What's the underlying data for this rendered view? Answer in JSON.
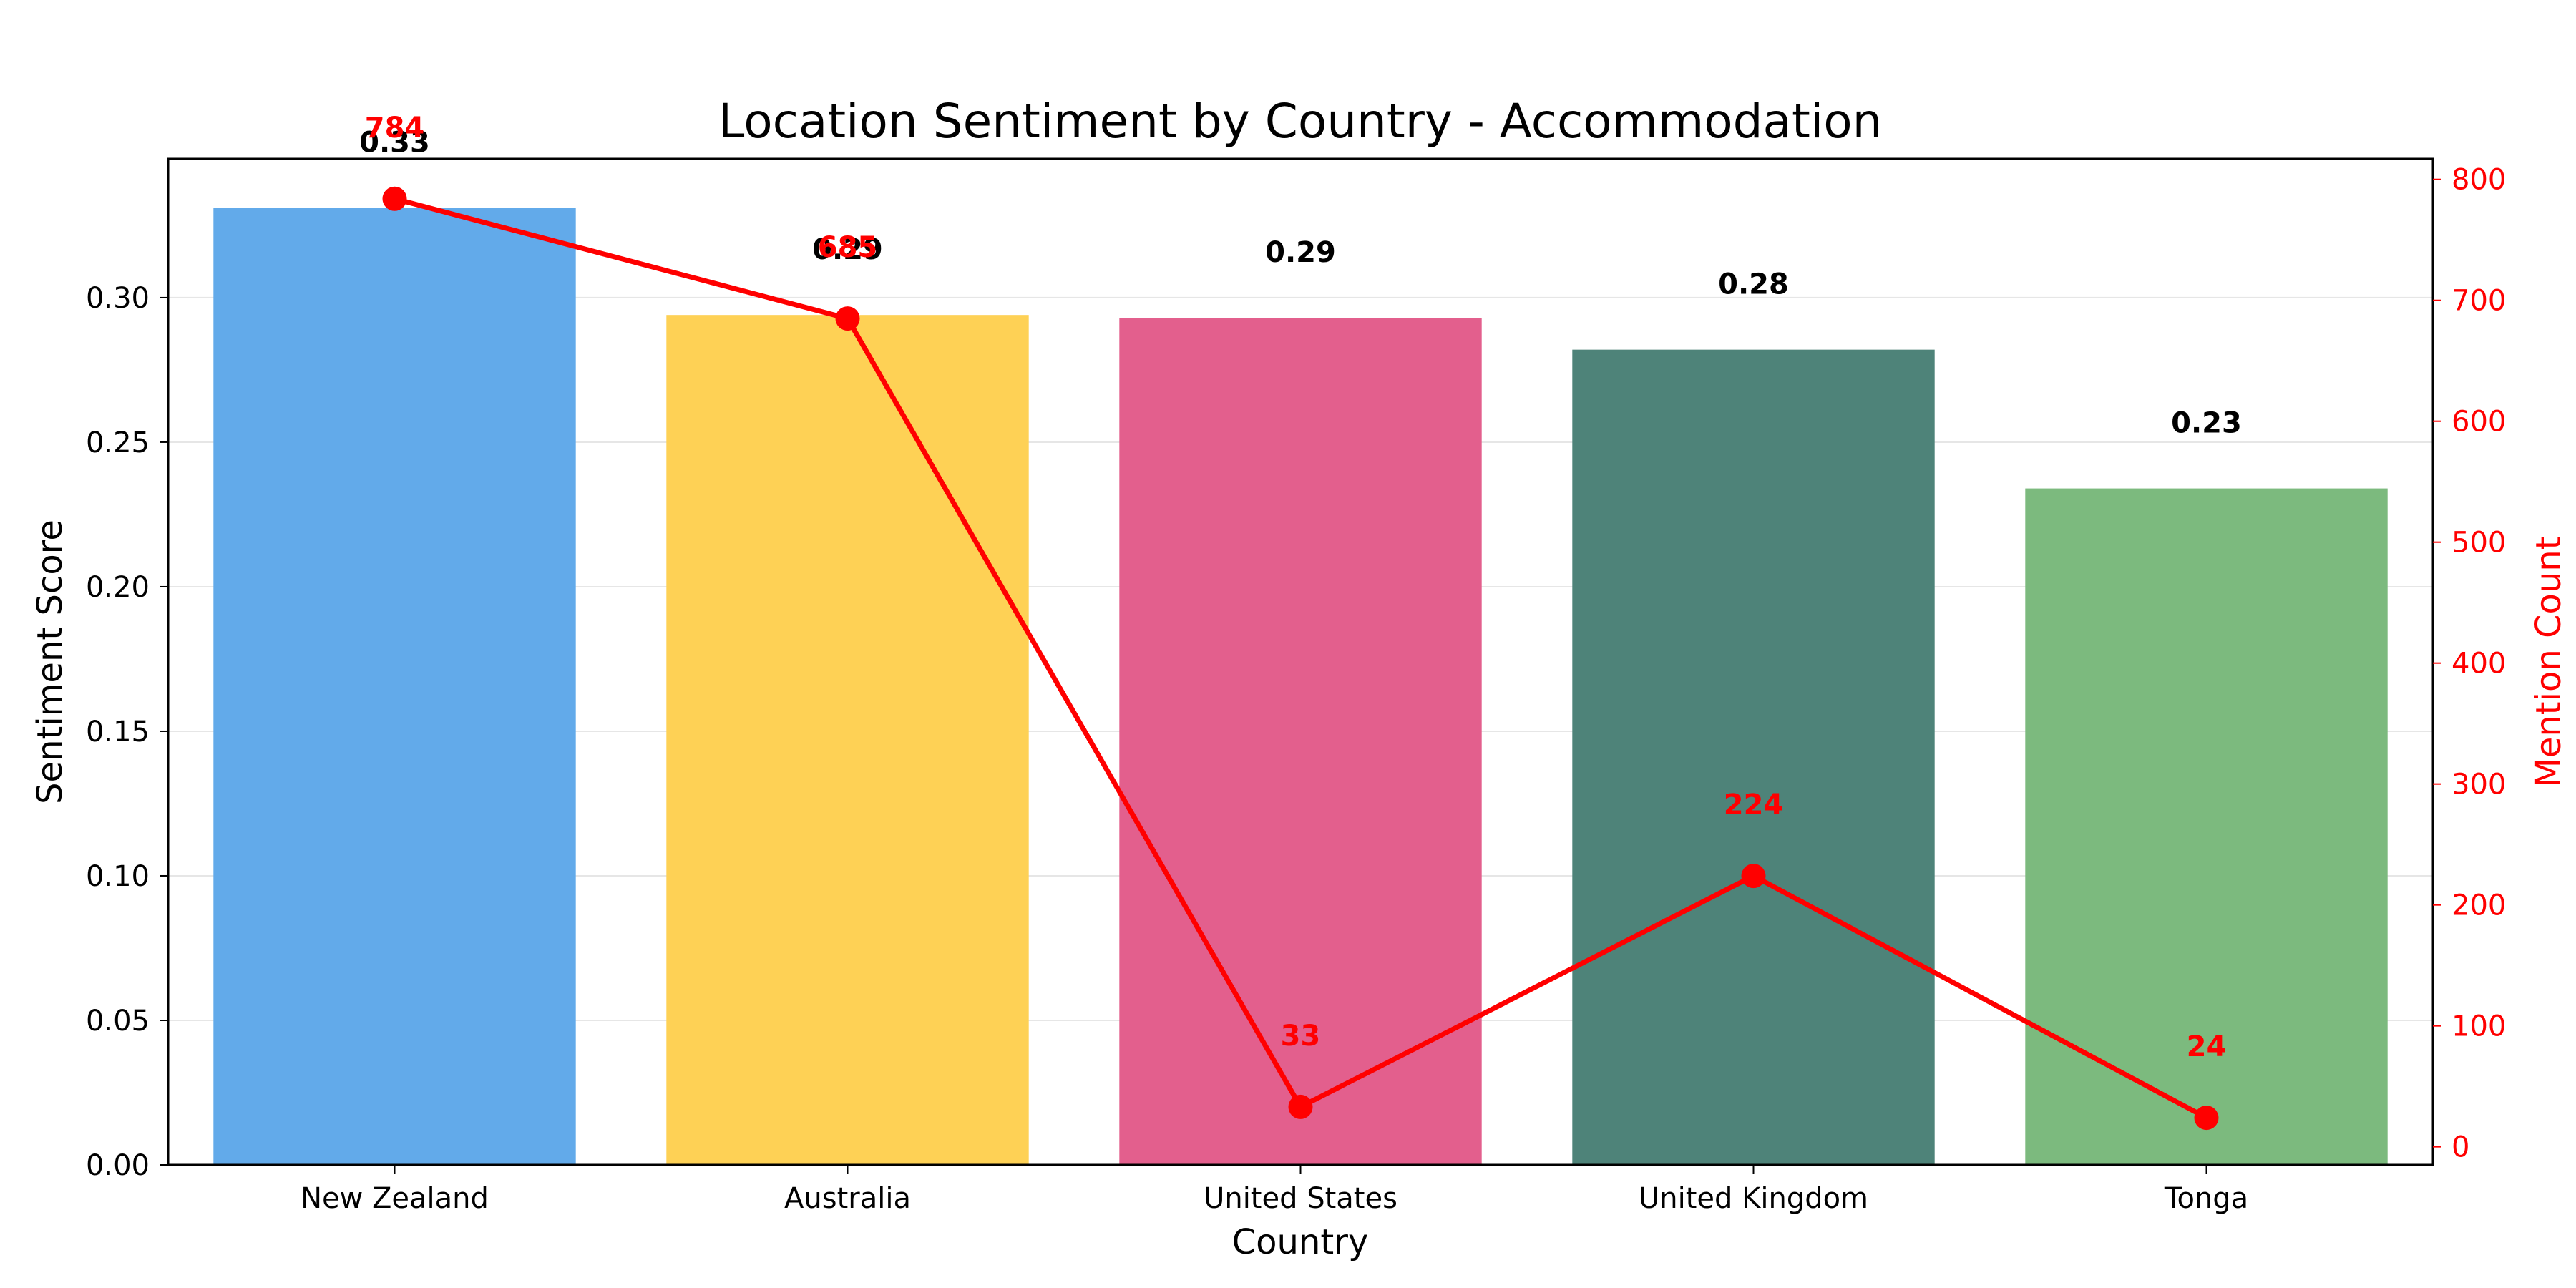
{
  "chart_data": {
    "type": "bar",
    "title": "Location Sentiment by Country - Accommodation",
    "xlabel": "Country",
    "ylabel": "Sentiment Score",
    "y2label": "Mention Count",
    "categories": [
      "New Zealand",
      "Australia",
      "United States",
      "United Kingdom",
      "Tonga"
    ],
    "series": [
      {
        "name": "Sentiment Score",
        "type": "bar",
        "axis": "left",
        "values": [
          0.331,
          0.294,
          0.293,
          0.282,
          0.234
        ],
        "labels": [
          "0.33",
          "0.29",
          "0.29",
          "0.28",
          "0.23"
        ],
        "colors": [
          "#62aaea",
          "#fed155",
          "#e35f8d",
          "#4e8379",
          "#7cba7e"
        ]
      },
      {
        "name": "Mention Count",
        "type": "line",
        "axis": "right",
        "values": [
          784,
          685,
          33,
          224,
          24
        ],
        "labels": [
          "784",
          "685",
          "33",
          "224",
          "24"
        ],
        "color": "#ff0000"
      }
    ],
    "ylim": [
      0,
      0.348
    ],
    "yticks": [
      "0.00",
      "0.05",
      "0.10",
      "0.15",
      "0.20",
      "0.25",
      "0.30"
    ],
    "y2lim": [
      -15,
      817
    ],
    "y2ticks": [
      "0",
      "100",
      "200",
      "300",
      "400",
      "500",
      "600",
      "700",
      "800"
    ],
    "grid": "horizontal"
  }
}
